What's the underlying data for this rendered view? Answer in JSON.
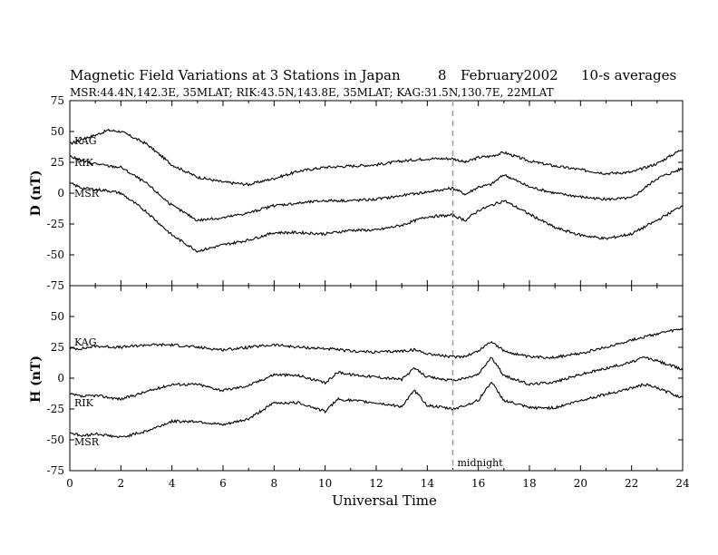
{
  "title": {
    "main": "Magnetic Field Variations at 3 Stations in Japan",
    "day": "8",
    "month_year": "February2002",
    "averaging": "10-s averages",
    "stations_line": "MSR:44.4N,142.3E, 35MLAT;  RIK:43.5N,143.8E, 35MLAT;  KAG:31.5N,130.7E, 22MLAT"
  },
  "chart_data": [
    {
      "type": "line",
      "panel": "D",
      "ylabel": "D (nT)",
      "xlim": [
        0,
        24
      ],
      "ylim": [
        -75,
        75
      ],
      "yticks": [
        -75,
        -50,
        -25,
        0,
        25,
        50,
        75
      ],
      "series": [
        {
          "name": "KAG",
          "x": [
            0,
            0.5,
            1,
            1.5,
            2,
            3,
            4,
            5,
            6,
            7,
            8,
            9,
            10,
            11,
            12,
            13,
            14,
            15,
            15.5,
            16,
            16.5,
            17,
            18,
            19,
            20,
            21,
            22,
            23,
            24
          ],
          "values": [
            40,
            44,
            47,
            51,
            50,
            40,
            23,
            13,
            9,
            7,
            12,
            18,
            21,
            22,
            23,
            26,
            28,
            28,
            25,
            29,
            30,
            33,
            26,
            22,
            19,
            16,
            17,
            24,
            36
          ]
        },
        {
          "name": "RIK",
          "x": [
            0,
            0.5,
            1,
            1.5,
            2,
            3,
            4,
            5,
            6,
            7,
            8,
            9,
            10,
            11,
            12,
            13,
            14,
            15,
            15.5,
            16,
            16.5,
            17,
            18,
            19,
            20,
            21,
            22,
            23,
            24
          ],
          "values": [
            30,
            26,
            24,
            22,
            21,
            8,
            -10,
            -22,
            -20,
            -16,
            -10,
            -8,
            -6,
            -6,
            -5,
            -2,
            1,
            4,
            -1,
            5,
            7,
            15,
            5,
            0,
            -3,
            -5,
            -4,
            12,
            20
          ]
        },
        {
          "name": "MSR",
          "x": [
            0,
            0.5,
            1,
            1.5,
            2,
            3,
            4,
            5,
            6,
            7,
            8,
            9,
            10,
            11,
            12,
            13,
            14,
            15,
            15.5,
            16,
            16.5,
            17,
            18,
            19,
            20,
            21,
            22,
            23,
            24
          ],
          "values": [
            8,
            4,
            3,
            2,
            0,
            -15,
            -34,
            -47,
            -42,
            -38,
            -32,
            -32,
            -33,
            -30,
            -30,
            -26,
            -19,
            -18,
            -22,
            -14,
            -10,
            -6,
            -17,
            -28,
            -34,
            -37,
            -33,
            -22,
            -10
          ]
        }
      ],
      "series_labels": [
        "KAG",
        "RIK",
        "MSR"
      ]
    },
    {
      "type": "line",
      "panel": "H",
      "ylabel": "H (nT)",
      "xlabel": "Universal Time",
      "xlim": [
        0,
        24
      ],
      "ylim": [
        -75,
        75
      ],
      "xticks": [
        0,
        2,
        4,
        6,
        8,
        10,
        12,
        14,
        16,
        18,
        20,
        22,
        24
      ],
      "yticks": [
        -75,
        -50,
        -25,
        0,
        25,
        50,
        75
      ],
      "series": [
        {
          "name": "KAG",
          "x": [
            0,
            0.5,
            1,
            2,
            3,
            4,
            5,
            6,
            7,
            8,
            9,
            10,
            11,
            12,
            13,
            13.5,
            14,
            15,
            15.5,
            16,
            16.5,
            17,
            18,
            19,
            20,
            21,
            22,
            23,
            24
          ],
          "values": [
            24,
            24,
            26,
            25,
            27,
            27,
            25,
            23,
            25,
            27,
            25,
            24,
            22,
            21,
            22,
            23,
            20,
            17,
            18,
            22,
            30,
            22,
            17,
            17,
            20,
            25,
            31,
            36,
            40
          ]
        },
        {
          "name": "RIK",
          "x": [
            0,
            0.5,
            1,
            2,
            3,
            4,
            5,
            6,
            7,
            8,
            9,
            10,
            10.5,
            11,
            12,
            13,
            13.5,
            14,
            15,
            15.5,
            16,
            16.5,
            17,
            18,
            19,
            20,
            21,
            22,
            22.5,
            23,
            24
          ],
          "values": [
            -13,
            -15,
            -14,
            -17,
            -11,
            -5,
            -5,
            -10,
            -6,
            3,
            2,
            -4,
            5,
            3,
            1,
            -1,
            8,
            1,
            -2,
            0,
            3,
            17,
            2,
            -5,
            -3,
            3,
            8,
            13,
            17,
            14,
            7
          ]
        },
        {
          "name": "MSR",
          "x": [
            0,
            0.5,
            1,
            2,
            3,
            4,
            5,
            6,
            7,
            8,
            9,
            10,
            10.5,
            11,
            12,
            13,
            13.5,
            14,
            15,
            15.5,
            16,
            16.5,
            17,
            18,
            19,
            20,
            21,
            22,
            22.5,
            23,
            24
          ],
          "values": [
            -44,
            -47,
            -45,
            -48,
            -43,
            -35,
            -35,
            -38,
            -33,
            -20,
            -20,
            -27,
            -17,
            -18,
            -20,
            -23,
            -10,
            -22,
            -25,
            -22,
            -18,
            -3,
            -18,
            -24,
            -24,
            -18,
            -13,
            -8,
            -5,
            -8,
            -16
          ]
        }
      ],
      "series_labels": [
        "KAG",
        "RIK",
        "MSR"
      ],
      "annotation": {
        "text": "midnight",
        "x": 15
      }
    }
  ],
  "colors": {
    "line": "#000000",
    "marker": "#999999",
    "background": "#ffffff"
  },
  "grid": false
}
